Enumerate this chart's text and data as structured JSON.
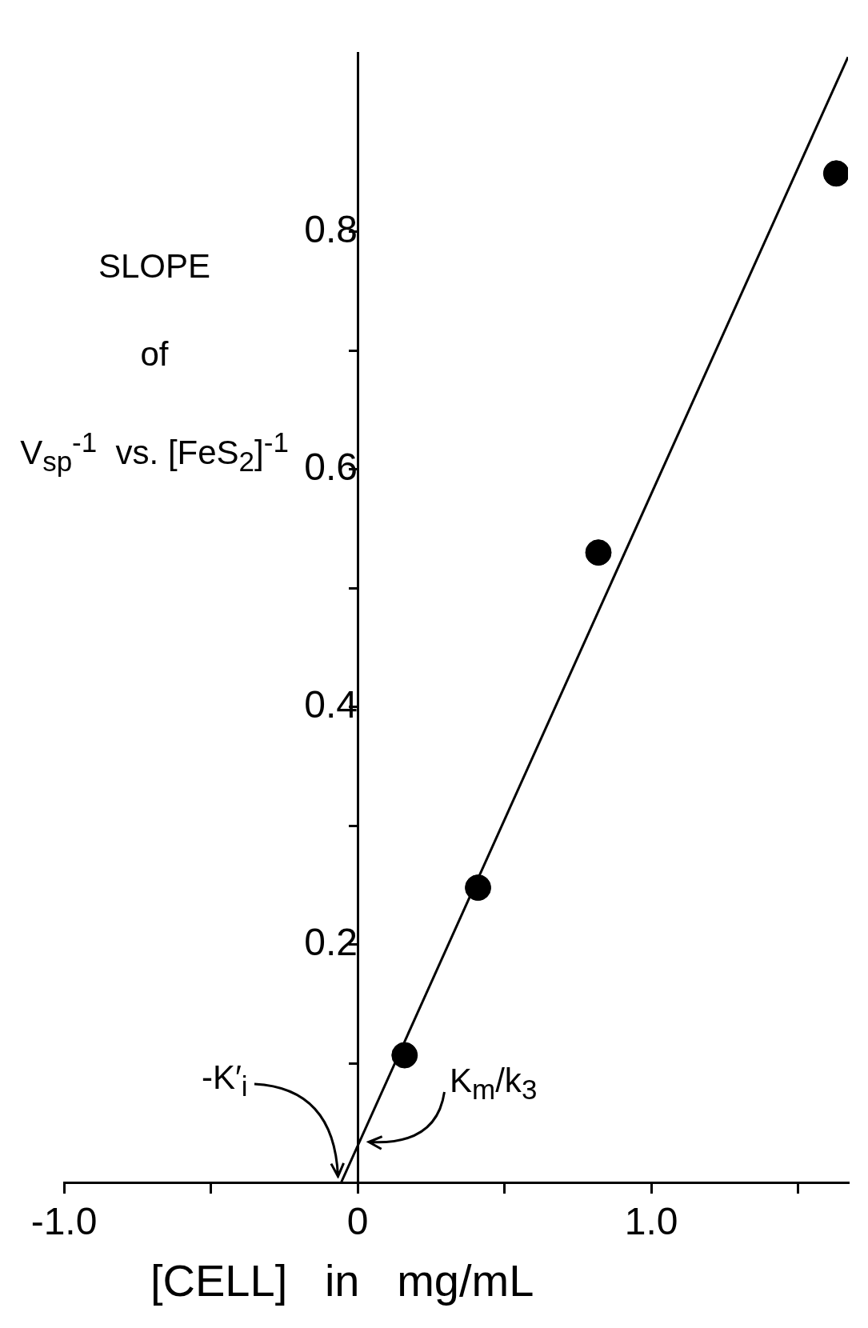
{
  "chart_data": {
    "type": "scatter",
    "xlabel": "[CELL]   in   mg/mL",
    "ylabel": "SLOPE\nof\nV$_{sp}$$^{-1}$  vs. [FeS$_{2}$]$^{-1}$",
    "xlim": [
      -1.0,
      1.67
    ],
    "xticks": [
      {
        "value": -1.0,
        "label": "-1.0"
      },
      {
        "value": -0.5,
        "label": null
      },
      0,
      {
        "value": 0.5,
        "label": null
      },
      {
        "value": 1.0,
        "label": "1.0"
      },
      {
        "value": 1.5,
        "label": null
      }
    ],
    "ylim": [
      0,
      0.95
    ],
    "yticks": [
      {
        "value": 0.1,
        "label": null
      },
      0.2,
      {
        "value": 0.3,
        "label": null
      },
      0.4,
      {
        "value": 0.5,
        "label": null
      },
      0.6,
      {
        "value": 0.7,
        "label": null
      },
      0.8
    ],
    "grid": false,
    "legend": false,
    "series": [
      {
        "type": "scatter",
        "color": "#000000",
        "marker": "circle",
        "x": [
          0.16,
          0.41,
          0.82,
          1.63
        ],
        "values": [
          0.107,
          0.248,
          0.53,
          0.849
        ]
      },
      {
        "type": "line",
        "color": "#000000",
        "marker": "none",
        "line_style": "solid",
        "x": [
          -0.056,
          1.67
        ],
        "values": [
          0,
          0.947
        ]
      }
    ],
    "annotations": [
      {
        "text": "-K′$_{i}$",
        "x": -0.056,
        "y": 0
      },
      {
        "text": "K$_{m}$/k$_{3}$",
        "x": 0,
        "y": 0.031
      }
    ]
  }
}
